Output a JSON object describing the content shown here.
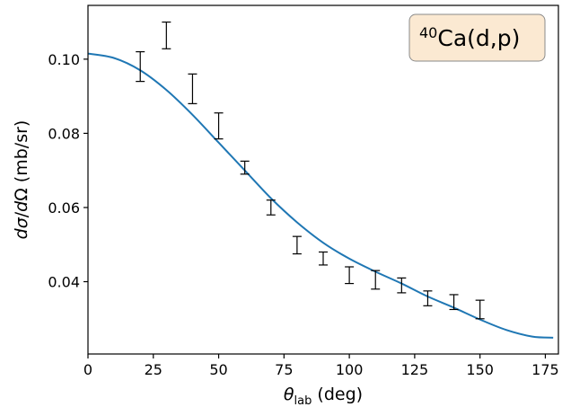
{
  "chart_data": {
    "type": "scatter",
    "title": "",
    "xlabel": "θ_lab (deg)",
    "ylabel": "dσ/dΩ (mb/sr)",
    "annotation": {
      "text": "40Ca(d,p)",
      "superscript": "40",
      "main": "Ca(d,p)",
      "placement": "top-right",
      "background_color": "#fbe9d2",
      "border_color": "#8a8a8a"
    },
    "xlim": [
      0,
      180
    ],
    "ylim": [
      0.0205,
      0.1145
    ],
    "xticks": [
      {
        "value": 0,
        "label": "0"
      },
      {
        "value": 25,
        "label": "25"
      },
      {
        "value": 50,
        "label": "50"
      },
      {
        "value": 75,
        "label": "75"
      },
      {
        "value": 100,
        "label": "100"
      },
      {
        "value": 125,
        "label": "125"
      },
      {
        "value": 150,
        "label": "150"
      },
      {
        "value": 175,
        "label": "175"
      }
    ],
    "yticks": [
      {
        "value": 0.04,
        "label": "0.04"
      },
      {
        "value": 0.06,
        "label": "0.06"
      },
      {
        "value": 0.08,
        "label": "0.08"
      },
      {
        "value": 0.1,
        "label": "0.10"
      }
    ],
    "grid": false,
    "error_bars": {
      "color": "#000000",
      "points": [
        {
          "x": 20,
          "low": 0.094,
          "high": 0.102
        },
        {
          "x": 30,
          "low": 0.1028,
          "high": 0.11
        },
        {
          "x": 40,
          "low": 0.088,
          "high": 0.096
        },
        {
          "x": 50,
          "low": 0.0785,
          "high": 0.0855
        },
        {
          "x": 60,
          "low": 0.069,
          "high": 0.0725
        },
        {
          "x": 70,
          "low": 0.058,
          "high": 0.062
        },
        {
          "x": 80,
          "low": 0.0475,
          "high": 0.0522
        },
        {
          "x": 90,
          "low": 0.0445,
          "high": 0.048
        },
        {
          "x": 100,
          "low": 0.0395,
          "high": 0.044
        },
        {
          "x": 110,
          "low": 0.038,
          "high": 0.043
        },
        {
          "x": 120,
          "low": 0.037,
          "high": 0.041
        },
        {
          "x": 130,
          "low": 0.0335,
          "high": 0.0375
        },
        {
          "x": 140,
          "low": 0.0325,
          "high": 0.0365
        },
        {
          "x": 150,
          "low": 0.03,
          "high": 0.035
        }
      ]
    },
    "curve": {
      "color": "#1f77b4",
      "x": [
        0,
        10,
        20,
        30,
        40,
        50,
        60,
        70,
        80,
        90,
        100,
        110,
        120,
        130,
        140,
        150,
        160,
        170,
        178
      ],
      "y": [
        0.1015,
        0.1003,
        0.097,
        0.0917,
        0.085,
        0.0775,
        0.07,
        0.0625,
        0.056,
        0.0505,
        0.0462,
        0.0427,
        0.0395,
        0.036,
        0.033,
        0.0298,
        0.027,
        0.0252,
        0.0249
      ]
    }
  }
}
